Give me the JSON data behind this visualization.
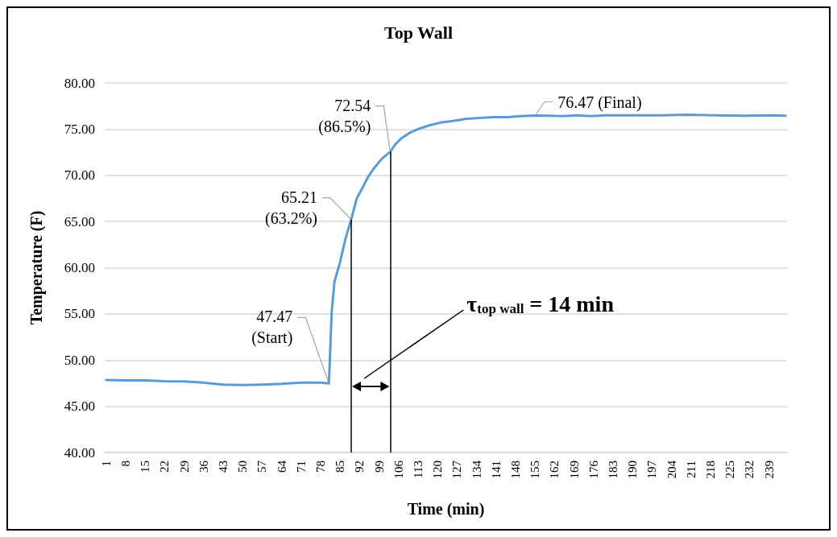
{
  "chart_data": {
    "type": "line",
    "title": "Top Wall",
    "xlabel": "Time (min)",
    "ylabel": "Temperature (F)",
    "series": [
      {
        "color": "#5b9bd5",
        "x": [
          1,
          8,
          15,
          22,
          29,
          36,
          43,
          50,
          57,
          64,
          71,
          78,
          81,
          82,
          83,
          85,
          87,
          89,
          91,
          93,
          95,
          97,
          100,
          103,
          105,
          107,
          110,
          113,
          117,
          121,
          126,
          130,
          135,
          140,
          145,
          150,
          155,
          160,
          165,
          170,
          175,
          180,
          190,
          200,
          210,
          220,
          230,
          240,
          245
        ],
        "values": [
          47.85,
          47.8,
          47.8,
          47.72,
          47.7,
          47.55,
          47.35,
          47.3,
          47.35,
          47.42,
          47.55,
          47.55,
          47.47,
          55.2,
          58.5,
          60.6,
          63.2,
          65.21,
          67.5,
          68.6,
          69.8,
          70.7,
          71.8,
          72.54,
          73.4,
          74.0,
          74.6,
          75.0,
          75.4,
          75.7,
          75.9,
          76.1,
          76.2,
          76.3,
          76.3,
          76.4,
          76.47,
          76.45,
          76.4,
          76.5,
          76.4,
          76.5,
          76.5,
          76.5,
          76.55,
          76.5,
          76.45,
          76.5,
          76.45
        ]
      }
    ],
    "xlim": [
      0.5,
      245.5
    ],
    "xticks": [
      1,
      8,
      15,
      22,
      29,
      36,
      43,
      50,
      57,
      64,
      71,
      78,
      85,
      92,
      99,
      106,
      113,
      120,
      127,
      134,
      141,
      148,
      155,
      162,
      169,
      176,
      183,
      190,
      197,
      204,
      211,
      218,
      225,
      232,
      239
    ],
    "ylim": [
      40,
      80
    ],
    "yticks": [
      {
        "value": 40,
        "label": "40.00"
      },
      {
        "value": 45,
        "label": "45.00"
      },
      {
        "value": 50,
        "label": "50.00"
      },
      {
        "value": 55,
        "label": "55.00"
      },
      {
        "value": 60,
        "label": "60.00"
      },
      {
        "value": 65,
        "label": "65.00"
      },
      {
        "value": 70,
        "label": "70.00"
      },
      {
        "value": 75,
        "label": "75.00"
      },
      {
        "value": 80,
        "label": "80.00"
      }
    ],
    "grid": "y",
    "ref_lines": [
      {
        "axis": "x",
        "value": 89,
        "color": "#000000"
      },
      {
        "axis": "x",
        "value": 103,
        "color": "#000000"
      }
    ],
    "annotations": [
      {
        "text": "47.47\n(Start)",
        "x": 81,
        "y": 47.47
      },
      {
        "text": "65.21\n(63.2%)",
        "x": 89,
        "y": 65.21
      },
      {
        "text": "72.54\n(86.5%)",
        "x": 103,
        "y": 72.54
      },
      {
        "text": "76.47 (Final)",
        "x": 155,
        "y": 76.47
      },
      "τ$_{top wall}$ = 14 min"
    ]
  }
}
